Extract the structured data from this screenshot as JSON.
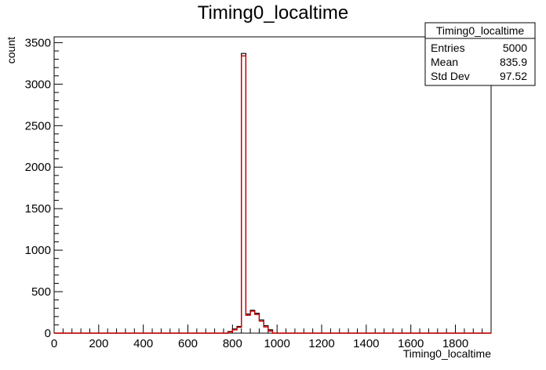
{
  "chart_data": {
    "type": "bar",
    "title": "Timing0_localtime",
    "xlabel": "Timing0_localtime",
    "ylabel": "count",
    "xlim": [
      0,
      1960
    ],
    "ylim": [
      0,
      3570
    ],
    "x_ticks": [
      0,
      200,
      400,
      600,
      800,
      1000,
      1200,
      1400,
      1600,
      1800
    ],
    "y_ticks": [
      0,
      500,
      1000,
      1500,
      2000,
      2500,
      3000,
      3500
    ],
    "bin_width": 20,
    "grid": false,
    "series": [
      {
        "name": "",
        "style": "step-outline",
        "color": "#000000",
        "bins": [
          {
            "x": 780,
            "value": 20
          },
          {
            "x": 800,
            "value": 50
          },
          {
            "x": 820,
            "value": 80
          },
          {
            "x": 840,
            "value": 3370
          },
          {
            "x": 860,
            "value": 230
          },
          {
            "x": 880,
            "value": 275
          },
          {
            "x": 900,
            "value": 240
          },
          {
            "x": 920,
            "value": 160
          },
          {
            "x": 940,
            "value": 90
          },
          {
            "x": 960,
            "value": 40
          }
        ]
      },
      {
        "name": "",
        "style": "step-outline",
        "color": "#cc0000",
        "bins": [
          {
            "x": 780,
            "value": 15
          },
          {
            "x": 800,
            "value": 40
          },
          {
            "x": 820,
            "value": 70
          },
          {
            "x": 840,
            "value": 3340
          },
          {
            "x": 860,
            "value": 215
          },
          {
            "x": 880,
            "value": 265
          },
          {
            "x": 900,
            "value": 225
          },
          {
            "x": 920,
            "value": 145
          },
          {
            "x": 940,
            "value": 75
          },
          {
            "x": 960,
            "value": 25
          }
        ]
      }
    ],
    "stats_box": {
      "title": "Timing0_localtime",
      "rows": [
        {
          "label": "Entries",
          "value": "5000"
        },
        {
          "label": "Mean",
          "value": "835.9"
        },
        {
          "label": "Std Dev",
          "value": "97.52"
        }
      ],
      "placement": "top-right"
    }
  }
}
